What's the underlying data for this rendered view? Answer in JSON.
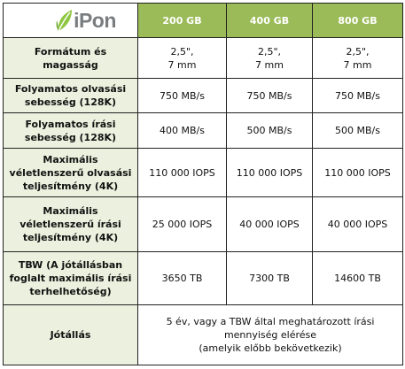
{
  "logo": {
    "text": "iPon",
    "icon": "leaf-icon",
    "colors": {
      "leaf": "#8dc63f",
      "text": "#7a7d80"
    }
  },
  "colors": {
    "header_bg": "#9bbb59",
    "label_bg": "#ebf1de",
    "border": "#222222"
  },
  "columns": [
    "200 GB",
    "400 GB",
    "800 GB"
  ],
  "rows": [
    {
      "label": "Formátum és\nmagasság",
      "values": [
        "2,5\",\n7 mm",
        "2,5\",\n7 mm",
        "2,5\",\n7 mm"
      ]
    },
    {
      "label": "Folyamatos olvasási\nsebesség (128K)",
      "values": [
        "750 MB/s",
        "750 MB/s",
        "750 MB/s"
      ]
    },
    {
      "label": "Folyamatos írási\nsebesség (128K)",
      "values": [
        "400 MB/s",
        "500 MB/s",
        "500 MB/s"
      ]
    },
    {
      "label": "Maximális\nvéletlenszerű olvasási\nteljesítmény (4K)",
      "values": [
        "110 000 IOPS",
        "110 000 IOPS",
        "110 000 IOPS"
      ]
    },
    {
      "label": "Maximális\nvéletlenszerű írási\nteljesítmény (4K)",
      "values": [
        "25 000 IOPS",
        "40 000 IOPS",
        "40 000 IOPS"
      ]
    },
    {
      "label": "TBW (A jótállásban\nfoglalt maximális írási\nterhelhetőség)",
      "values": [
        "3650 TB",
        "7300 TB",
        "14600 TB"
      ]
    }
  ],
  "warranty": {
    "label": "Jótállás",
    "value": "5 év, vagy a TBW által meghatározott írási\nmennyiség elérése\n(amelyik előbb bekövetkezik)"
  }
}
